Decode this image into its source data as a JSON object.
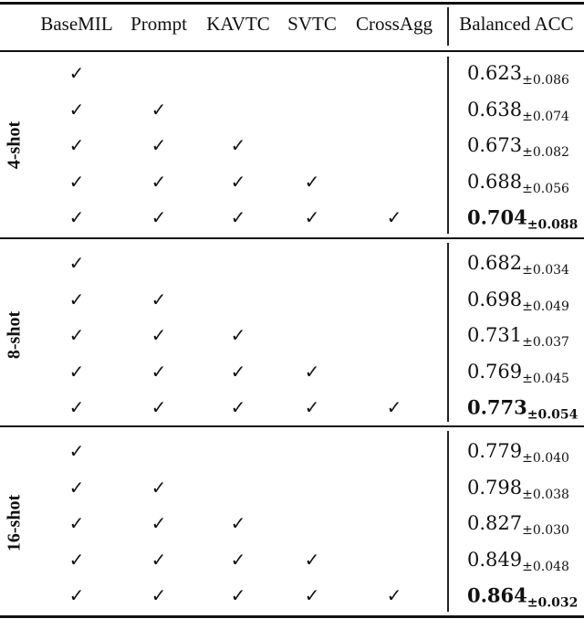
{
  "table": {
    "headers": [
      "BaseMIL",
      "Prompt",
      "KAVTC",
      "SVTC",
      "CrossAgg",
      "Balanced ACC"
    ],
    "groups": [
      {
        "label": "4-shot",
        "rows": [
          {
            "checks": [
              true,
              false,
              false,
              false,
              false
            ],
            "mean": "0.623",
            "std": "±0.086",
            "bold": false
          },
          {
            "checks": [
              true,
              true,
              false,
              false,
              false
            ],
            "mean": "0.638",
            "std": "±0.074",
            "bold": false
          },
          {
            "checks": [
              true,
              true,
              true,
              false,
              false
            ],
            "mean": "0.673",
            "std": "±0.082",
            "bold": false
          },
          {
            "checks": [
              true,
              true,
              true,
              true,
              false
            ],
            "mean": "0.688",
            "std": "±0.056",
            "bold": false
          },
          {
            "checks": [
              true,
              true,
              true,
              true,
              true
            ],
            "mean": "0.704",
            "std": "±0.088",
            "bold": true
          }
        ]
      },
      {
        "label": "8-shot",
        "rows": [
          {
            "checks": [
              true,
              false,
              false,
              false,
              false
            ],
            "mean": "0.682",
            "std": "±0.034",
            "bold": false
          },
          {
            "checks": [
              true,
              true,
              false,
              false,
              false
            ],
            "mean": "0.698",
            "std": "±0.049",
            "bold": false
          },
          {
            "checks": [
              true,
              true,
              true,
              false,
              false
            ],
            "mean": "0.731",
            "std": "±0.037",
            "bold": false
          },
          {
            "checks": [
              true,
              true,
              true,
              true,
              false
            ],
            "mean": "0.769",
            "std": "±0.045",
            "bold": false
          },
          {
            "checks": [
              true,
              true,
              true,
              true,
              true
            ],
            "mean": "0.773",
            "std": "±0.054",
            "bold": true
          }
        ]
      },
      {
        "label": "16-shot",
        "rows": [
          {
            "checks": [
              true,
              false,
              false,
              false,
              false
            ],
            "mean": "0.779",
            "std": "±0.040",
            "bold": false
          },
          {
            "checks": [
              true,
              true,
              false,
              false,
              false
            ],
            "mean": "0.798",
            "std": "±0.038",
            "bold": false
          },
          {
            "checks": [
              true,
              true,
              true,
              false,
              false
            ],
            "mean": "0.827",
            "std": "±0.030",
            "bold": false
          },
          {
            "checks": [
              true,
              true,
              true,
              true,
              false
            ],
            "mean": "0.849",
            "std": "±0.048",
            "bold": false
          },
          {
            "checks": [
              true,
              true,
              true,
              true,
              true
            ],
            "mean": "0.864",
            "std": "±0.032",
            "bold": true
          }
        ]
      }
    ],
    "check_glyph": "✓"
  }
}
